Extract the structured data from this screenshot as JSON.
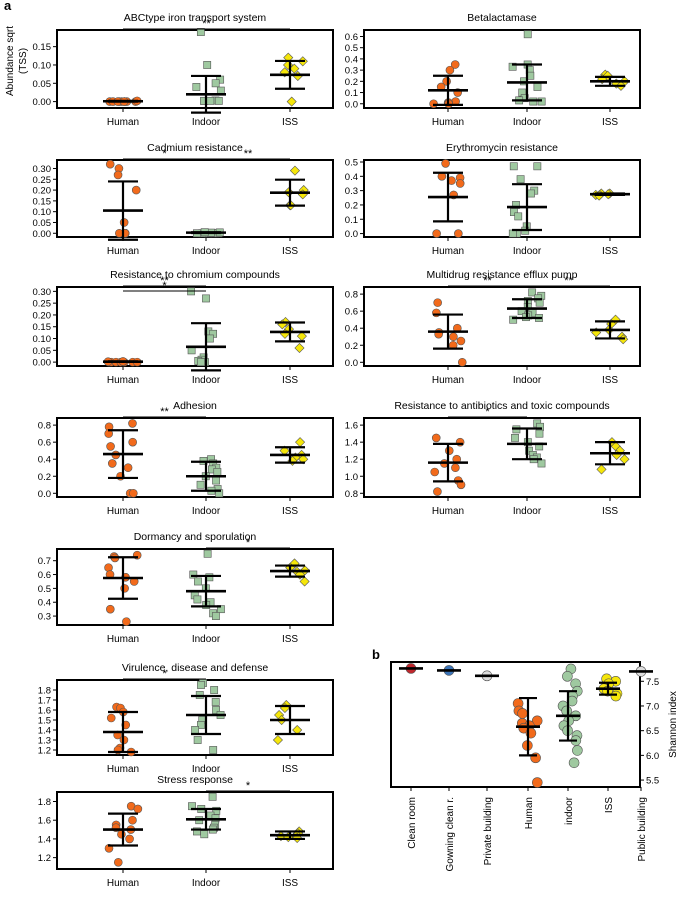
{
  "panel_labels": [
    "a",
    "b"
  ],
  "colors": {
    "human": "#f26a1b",
    "indoor": "#9fc9a0",
    "iss": "#f5e60a",
    "stroke": "#555555",
    "clean_room": "#c0272d",
    "gowning": "#3b74b8",
    "private": "#dddddd",
    "public": "#dddddd"
  },
  "chart_data": [
    {
      "type": "scatter",
      "title": "ABCtype iron transport system",
      "ylabel": "Abundance sqrt (TSS)",
      "categories": [
        "Human",
        "Indoor",
        "ISS"
      ],
      "ylim": [
        -0.012,
        0.19
      ],
      "yticks": [
        "0.00",
        "0.05",
        "0.10",
        "0.15"
      ],
      "ytick_values": [
        0,
        0.05,
        0.1,
        0.15
      ],
      "groups": [
        {
          "mean": 0.001,
          "sd": 0.001,
          "points": [
            0,
            0,
            0,
            0,
            0,
            0,
            0,
            0,
            0,
            0.002
          ]
        },
        {
          "mean": 0.02,
          "sd": 0.05,
          "points": [
            0.19,
            0.1,
            0.06,
            0.05,
            0.04,
            0.03,
            0.003,
            0.002,
            0.002,
            0.002,
            0.002
          ]
        },
        {
          "mean": 0.073,
          "sd": 0.038,
          "points": [
            0.12,
            0.11,
            0.1,
            0.09,
            0.08,
            0.07,
            0.0
          ]
        }
      ],
      "significance": [
        {
          "from": 0,
          "to": 2,
          "label": "**"
        }
      ]
    },
    {
      "type": "scatter",
      "title": "Betalactamase",
      "ylabel": "",
      "categories": [
        "Human",
        "Indoor",
        "ISS"
      ],
      "ylim": [
        -0.02,
        0.64
      ],
      "yticks": [
        "0.0",
        "0.1",
        "0.2",
        "0.3",
        "0.4",
        "0.5",
        "0.6"
      ],
      "ytick_values": [
        0,
        0.1,
        0.2,
        0.3,
        0.4,
        0.5,
        0.6
      ],
      "groups": [
        {
          "mean": 0.12,
          "sd": 0.13,
          "points": [
            0.35,
            0.3,
            0.2,
            0.15,
            0.1,
            0.02,
            0.01,
            0.01,
            0.0,
            0.0
          ]
        },
        {
          "mean": 0.19,
          "sd": 0.16,
          "points": [
            0.62,
            0.35,
            0.33,
            0.3,
            0.25,
            0.2,
            0.15,
            0.1,
            0.05,
            0.03,
            0.02,
            0.02
          ]
        },
        {
          "mean": 0.2,
          "sd": 0.04,
          "points": [
            0.26,
            0.25,
            0.22,
            0.2,
            0.18,
            0.16
          ]
        }
      ],
      "significance": []
    },
    {
      "type": "scatter",
      "title": "Cadmium resistance",
      "ylabel": "",
      "categories": [
        "Human",
        "Indoor",
        "ISS"
      ],
      "ylim": [
        -0.008,
        0.33
      ],
      "yticks": [
        "0.00",
        "0.05",
        "0.10",
        "0.15",
        "0.20",
        "0.25",
        "0.30"
      ],
      "ytick_values": [
        0,
        0.05,
        0.1,
        0.15,
        0.2,
        0.25,
        0.3
      ],
      "groups": [
        {
          "mean": 0.105,
          "sd": 0.135,
          "points": [
            0.32,
            0.3,
            0.27,
            0.2,
            0.05,
            0.0,
            0.0,
            0.0,
            0.0,
            0.0
          ]
        },
        {
          "mean": 0.003,
          "sd": 0.002,
          "points": [
            0,
            0,
            0,
            0,
            0,
            0,
            0,
            0.003,
            0.004,
            0.005
          ]
        },
        {
          "mean": 0.188,
          "sd": 0.06,
          "points": [
            0.29,
            0.2,
            0.19,
            0.18,
            0.13,
            0.13
          ]
        }
      ],
      "significance": [
        {
          "from": 0,
          "to": 1,
          "label": "*"
        },
        {
          "from": 1,
          "to": 2,
          "label": "**"
        }
      ]
    },
    {
      "type": "scatter",
      "title": "Erythromycin resistance",
      "ylabel": "",
      "categories": [
        "Human",
        "Indoor",
        "ISS"
      ],
      "ylim": [
        -0.01,
        0.5
      ],
      "yticks": [
        "0.0",
        "0.1",
        "0.2",
        "0.3",
        "0.4",
        "0.5"
      ],
      "ytick_values": [
        0,
        0.1,
        0.2,
        0.3,
        0.4,
        0.5
      ],
      "groups": [
        {
          "mean": 0.255,
          "sd": 0.17,
          "points": [
            0.49,
            0.4,
            0.39,
            0.37,
            0.35,
            0.27,
            0.0,
            0.0
          ]
        },
        {
          "mean": 0.185,
          "sd": 0.16,
          "points": [
            0.47,
            0.47,
            0.38,
            0.3,
            0.28,
            0.2,
            0.15,
            0.12,
            0.05,
            0.02,
            0.0,
            0.0
          ]
        },
        {
          "mean": 0.275,
          "sd": 0.005,
          "points": [
            0.28,
            0.28,
            0.275,
            0.27,
            0.27,
            0.265
          ]
        }
      ],
      "significance": []
    },
    {
      "type": "scatter",
      "title": "Resistance to chromium compounds",
      "ylabel": "",
      "categories": [
        "Human",
        "Indoor",
        "ISS"
      ],
      "ylim": [
        -0.008,
        0.31
      ],
      "yticks": [
        "0.00",
        "0.05",
        "0.10",
        "0.15",
        "0.20",
        "0.25",
        "0.30"
      ],
      "ytick_values": [
        0,
        0.05,
        0.1,
        0.15,
        0.2,
        0.25,
        0.3
      ],
      "groups": [
        {
          "mean": 0.002,
          "sd": 0.001,
          "points": [
            0,
            0,
            0,
            0,
            0,
            0,
            0,
            0.002,
            0.003
          ]
        },
        {
          "mean": 0.065,
          "sd": 0.1,
          "points": [
            0.3,
            0.27,
            0.13,
            0.12,
            0.1,
            0.05,
            0.02,
            0.01,
            0.005,
            0.0,
            0.0
          ]
        },
        {
          "mean": 0.128,
          "sd": 0.04,
          "points": [
            0.17,
            0.16,
            0.14,
            0.12,
            0.11,
            0.06
          ]
        }
      ],
      "significance": [
        {
          "from": 0,
          "to": 1,
          "label": "**"
        },
        {
          "from": 0,
          "to": 1,
          "label": "*"
        }
      ]
    },
    {
      "type": "scatter",
      "title": "Multidrug resistance efflux pump",
      "ylabel": "",
      "categories": [
        "Human",
        "Indoor",
        "ISS"
      ],
      "ylim": [
        -0.02,
        0.86
      ],
      "yticks": [
        "0.0",
        "0.2",
        "0.4",
        "0.6",
        "0.8"
      ],
      "ytick_values": [
        0,
        0.2,
        0.4,
        0.6,
        0.8
      ],
      "groups": [
        {
          "mean": 0.36,
          "sd": 0.2,
          "points": [
            0.7,
            0.58,
            0.4,
            0.35,
            0.33,
            0.3,
            0.25,
            0.2,
            0.0
          ]
        },
        {
          "mean": 0.63,
          "sd": 0.11,
          "points": [
            0.82,
            0.78,
            0.75,
            0.72,
            0.7,
            0.65,
            0.6,
            0.58,
            0.55,
            0.53,
            0.5,
            0.52
          ]
        },
        {
          "mean": 0.38,
          "sd": 0.1,
          "points": [
            0.5,
            0.45,
            0.38,
            0.35,
            0.3,
            0.27
          ]
        }
      ],
      "significance": [
        {
          "from": 0,
          "to": 1,
          "label": "**"
        },
        {
          "from": 1,
          "to": 2,
          "label": "**"
        }
      ]
    },
    {
      "type": "scatter",
      "title": "Adhesion",
      "ylabel": "",
      "categories": [
        "Human",
        "Indoor",
        "ISS"
      ],
      "ylim": [
        -0.02,
        0.86
      ],
      "yticks": [
        "0.0",
        "0.2",
        "0.4",
        "0.6",
        "0.8"
      ],
      "ytick_values": [
        0,
        0.2,
        0.4,
        0.6,
        0.8
      ],
      "groups": [
        {
          "mean": 0.46,
          "sd": 0.28,
          "points": [
            0.82,
            0.78,
            0.7,
            0.6,
            0.55,
            0.45,
            0.35,
            0.3,
            0.2,
            0.0,
            0.0
          ]
        },
        {
          "mean": 0.2,
          "sd": 0.17,
          "points": [
            0.4,
            0.38,
            0.35,
            0.3,
            0.28,
            0.25,
            0.2,
            0.15,
            0.1,
            0.05,
            0.03,
            0.0
          ]
        },
        {
          "mean": 0.45,
          "sd": 0.09,
          "points": [
            0.6,
            0.5,
            0.45,
            0.42,
            0.4,
            0.38
          ]
        }
      ],
      "significance": [
        {
          "from": 0,
          "to": 1,
          "label": "**"
        }
      ]
    },
    {
      "type": "scatter",
      "title": "Resistance to antibiotics and toxic compounds",
      "ylabel": "",
      "categories": [
        "Human",
        "Indoor",
        "ISS"
      ],
      "ylim": [
        0.78,
        1.66
      ],
      "yticks": [
        "0.8",
        "1.0",
        "1.2",
        "1.4",
        "1.6"
      ],
      "ytick_values": [
        0.8,
        1.0,
        1.2,
        1.4,
        1.6
      ],
      "groups": [
        {
          "mean": 1.16,
          "sd": 0.22,
          "points": [
            1.45,
            1.4,
            1.3,
            1.2,
            1.15,
            1.1,
            1.05,
            0.95,
            0.9,
            0.82
          ]
        },
        {
          "mean": 1.38,
          "sd": 0.18,
          "points": [
            1.62,
            1.58,
            1.55,
            1.5,
            1.45,
            1.4,
            1.35,
            1.3,
            1.25,
            1.22,
            1.2,
            1.15
          ]
        },
        {
          "mean": 1.27,
          "sd": 0.13,
          "points": [
            1.4,
            1.35,
            1.3,
            1.25,
            1.2,
            1.08
          ]
        }
      ],
      "significance": [
        {
          "from": 0,
          "to": 1,
          "label": "*"
        }
      ]
    },
    {
      "type": "scatter",
      "title": "Dormancy and sporulation",
      "ylabel": "",
      "categories": [
        "Human",
        "Indoor",
        "ISS"
      ],
      "ylim": [
        0.25,
        0.77
      ],
      "yticks": [
        "0.3",
        "0.4",
        "0.5",
        "0.6",
        "0.7"
      ],
      "ytick_values": [
        0.3,
        0.4,
        0.5,
        0.6,
        0.7
      ],
      "groups": [
        {
          "mean": 0.575,
          "sd": 0.15,
          "points": [
            0.74,
            0.73,
            0.72,
            0.65,
            0.6,
            0.58,
            0.55,
            0.5,
            0.35,
            0.26
          ]
        },
        {
          "mean": 0.48,
          "sd": 0.11,
          "points": [
            0.75,
            0.6,
            0.58,
            0.55,
            0.5,
            0.45,
            0.42,
            0.4,
            0.38,
            0.35,
            0.32,
            0.3
          ]
        },
        {
          "mean": 0.625,
          "sd": 0.04,
          "points": [
            0.68,
            0.65,
            0.63,
            0.62,
            0.6,
            0.55
          ]
        }
      ],
      "significance": [
        {
          "from": 1,
          "to": 2,
          "label": "*"
        }
      ]
    },
    {
      "type": "scatter",
      "title": "Virulence, disease and defense",
      "ylabel": "",
      "categories": [
        "Human",
        "Indoor",
        "ISS"
      ],
      "ylim": [
        1.17,
        1.88
      ],
      "yticks": [
        "1.2",
        "1.3",
        "1.4",
        "1.5",
        "1.6",
        "1.7",
        "1.8"
      ],
      "ytick_values": [
        1.2,
        1.3,
        1.4,
        1.5,
        1.6,
        1.7,
        1.8
      ],
      "groups": [
        {
          "mean": 1.38,
          "sd": 0.2,
          "points": [
            1.63,
            1.62,
            1.58,
            1.52,
            1.45,
            1.35,
            1.3,
            1.22,
            1.2,
            1.18
          ]
        },
        {
          "mean": 1.55,
          "sd": 0.19,
          "points": [
            1.87,
            1.85,
            1.8,
            1.75,
            1.68,
            1.6,
            1.55,
            1.5,
            1.45,
            1.4,
            1.3,
            1.2
          ]
        },
        {
          "mean": 1.5,
          "sd": 0.14,
          "points": [
            1.65,
            1.62,
            1.55,
            1.5,
            1.4,
            1.3
          ]
        }
      ],
      "significance": [
        {
          "from": 0,
          "to": 1,
          "label": "*"
        }
      ]
    },
    {
      "type": "scatter",
      "title": "Stress response",
      "ylabel": "",
      "categories": [
        "Human",
        "Indoor",
        "ISS"
      ],
      "ylim": [
        1.1,
        1.88
      ],
      "yticks": [
        "1.2",
        "1.4",
        "1.6",
        "1.8"
      ],
      "ytick_values": [
        1.2,
        1.4,
        1.6,
        1.8
      ],
      "groups": [
        {
          "mean": 1.5,
          "sd": 0.17,
          "points": [
            1.75,
            1.72,
            1.6,
            1.55,
            1.52,
            1.5,
            1.45,
            1.4,
            1.3,
            1.15
          ]
        },
        {
          "mean": 1.61,
          "sd": 0.11,
          "points": [
            1.85,
            1.75,
            1.72,
            1.7,
            1.65,
            1.62,
            1.6,
            1.55,
            1.52,
            1.5,
            1.48,
            1.45
          ]
        },
        {
          "mean": 1.44,
          "sd": 0.04,
          "points": [
            1.48,
            1.46,
            1.44,
            1.43,
            1.42,
            1.41
          ]
        }
      ],
      "significance": [
        {
          "from": 1,
          "to": 2,
          "label": "*"
        }
      ]
    },
    {
      "type": "scatter",
      "title": "",
      "ylabel": "Shannon index",
      "ylabel_side": "right",
      "categories": [
        "Clean room",
        "Gowning clean r.",
        "Private building",
        "Human",
        "indoor",
        "ISS",
        "Public building"
      ],
      "ylim": [
        5.4,
        7.85
      ],
      "yticks": [
        "5.5",
        "6.0",
        "6.5",
        "7.0",
        "7.5"
      ],
      "ytick_values": [
        5.5,
        6.0,
        6.5,
        7.0,
        7.5
      ],
      "groups": [
        {
          "mean": 7.76,
          "sd": 0,
          "points": [
            7.76
          ]
        },
        {
          "mean": 7.72,
          "sd": 0,
          "points": [
            7.72
          ]
        },
        {
          "mean": 7.61,
          "sd": 0,
          "points": [
            7.61
          ]
        },
        {
          "mean": 6.58,
          "sd": 0.58,
          "points": [
            7.05,
            6.9,
            6.85,
            6.7,
            6.65,
            6.6,
            6.55,
            6.45,
            6.2,
            5.95,
            5.45
          ]
        },
        {
          "mean": 6.8,
          "sd": 0.5,
          "points": [
            7.75,
            7.6,
            7.45,
            7.3,
            7.2,
            7.1,
            7.0,
            6.9,
            6.8,
            6.7,
            6.6,
            6.5,
            6.4,
            6.3,
            6.1,
            5.85
          ]
        },
        {
          "mean": 7.35,
          "sd": 0.12,
          "points": [
            7.55,
            7.5,
            7.45,
            7.35,
            7.3,
            7.25,
            7.2
          ]
        },
        {
          "mean": 7.7,
          "sd": 0,
          "points": [
            7.7
          ]
        }
      ],
      "significance": []
    }
  ]
}
